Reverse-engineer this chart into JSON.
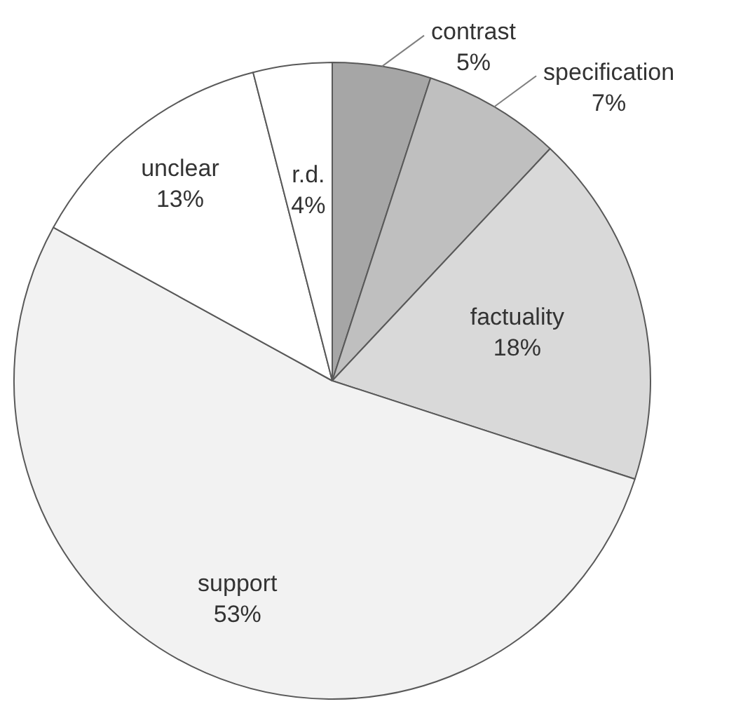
{
  "chart_data": {
    "type": "pie",
    "categories": [
      "contrast",
      "specification",
      "factuality",
      "support",
      "unclear",
      "r.d."
    ],
    "values": [
      5,
      7,
      18,
      53,
      13,
      4
    ],
    "value_labels": [
      "5%",
      "7%",
      "18%",
      "53%",
      "13%",
      "4%"
    ],
    "colors": [
      "#a6a6a6",
      "#bfbfbf",
      "#d9d9d9",
      "#f2f2f2",
      "#ffffff",
      "#ffffff"
    ],
    "legend": false
  }
}
